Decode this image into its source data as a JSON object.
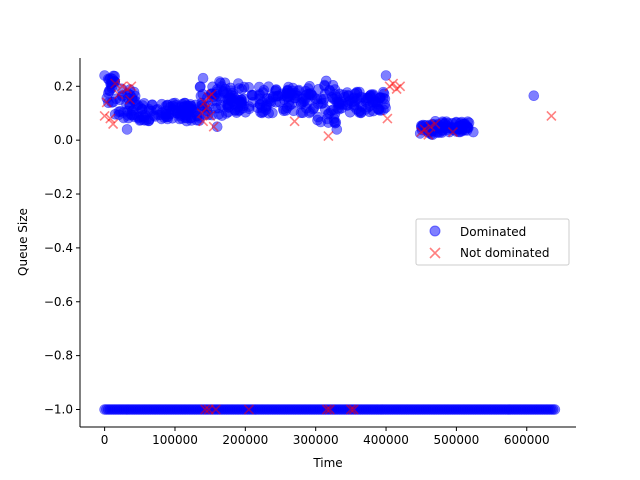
{
  "chart_data": {
    "type": "scatter",
    "xlabel": "Time",
    "ylabel": "Queue Size",
    "xlim": [
      -35000,
      670000
    ],
    "ylim": [
      -1.065,
      0.305
    ],
    "xticks": [
      0,
      100000,
      200000,
      300000,
      400000,
      500000,
      600000
    ],
    "xtick_labels": [
      "0",
      "100000",
      "200000",
      "300000",
      "400000",
      "500000",
      "600000"
    ],
    "yticks": [
      0.2,
      0.0,
      -0.2,
      -0.4,
      -0.6,
      -0.8,
      -1.0
    ],
    "ytick_labels": [
      "0.2",
      "0.0",
      "−0.2",
      "−0.4",
      "−0.6",
      "−0.8",
      "−1.0"
    ],
    "grid": false,
    "legend_position": "center-right",
    "series": [
      {
        "name": "Dominated",
        "marker": "circle",
        "color": "#0000ff",
        "alpha": 0.5,
        "bands": [
          {
            "x": [
              0,
              640000
            ],
            "y": [
              -1.0,
              -1.0
            ]
          },
          {
            "x": [
              0,
              15000
            ],
            "y": [
              0.13,
              0.24
            ]
          },
          {
            "x": [
              15000,
              45000
            ],
            "y": [
              0.08,
              0.2
            ]
          },
          {
            "x": [
              45000,
              135000
            ],
            "y": [
              0.07,
              0.14
            ]
          },
          {
            "x": [
              135000,
              175000
            ],
            "y": [
              0.09,
              0.22
            ]
          },
          {
            "x": [
              175000,
              300000
            ],
            "y": [
              0.1,
              0.2
            ]
          },
          {
            "x": [
              300000,
              330000
            ],
            "y": [
              0.06,
              0.21
            ]
          },
          {
            "x": [
              330000,
              400000
            ],
            "y": [
              0.1,
              0.18
            ]
          },
          {
            "x": [
              448000,
              480000
            ],
            "y": [
              0.02,
              0.06
            ]
          },
          {
            "x": [
              480000,
              520000
            ],
            "y": [
              0.03,
              0.07
            ]
          }
        ],
        "points": [
          {
            "x": 0,
            "y": 0.24
          },
          {
            "x": 8000,
            "y": 0.23
          },
          {
            "x": 10000,
            "y": 0.14
          },
          {
            "x": 32000,
            "y": 0.04
          },
          {
            "x": 47000,
            "y": 0.13
          },
          {
            "x": 140000,
            "y": 0.23
          },
          {
            "x": 160000,
            "y": 0.05
          },
          {
            "x": 190000,
            "y": 0.21
          },
          {
            "x": 315000,
            "y": 0.22
          },
          {
            "x": 330000,
            "y": 0.04
          },
          {
            "x": 400000,
            "y": 0.24
          },
          {
            "x": 470000,
            "y": 0.07
          },
          {
            "x": 490000,
            "y": 0.03
          },
          {
            "x": 510000,
            "y": 0.06
          },
          {
            "x": 524000,
            "y": 0.03
          },
          {
            "x": 610000,
            "y": 0.165
          }
        ]
      },
      {
        "name": "Not dominated",
        "marker": "x",
        "color": "#ff0000",
        "alpha": 0.5,
        "points": [
          {
            "x": 0,
            "y": 0.09
          },
          {
            "x": 3000,
            "y": 0.14
          },
          {
            "x": 8000,
            "y": 0.08
          },
          {
            "x": 12000,
            "y": 0.06
          },
          {
            "x": 15000,
            "y": 0.21
          },
          {
            "x": 20000,
            "y": 0.17
          },
          {
            "x": 25000,
            "y": 0.2
          },
          {
            "x": 32000,
            "y": 0.19
          },
          {
            "x": 38000,
            "y": 0.2
          },
          {
            "x": 36000,
            "y": 0.15
          },
          {
            "x": 138000,
            "y": 0.1
          },
          {
            "x": 140000,
            "y": 0.07
          },
          {
            "x": 142000,
            "y": 0.14
          },
          {
            "x": 145000,
            "y": 0.12
          },
          {
            "x": 148000,
            "y": 0.16
          },
          {
            "x": 150000,
            "y": 0.09
          },
          {
            "x": 152000,
            "y": 0.17
          },
          {
            "x": 155000,
            "y": 0.05
          },
          {
            "x": 270000,
            "y": 0.07
          },
          {
            "x": 318000,
            "y": 0.015
          },
          {
            "x": 402000,
            "y": 0.08
          },
          {
            "x": 405000,
            "y": 0.2
          },
          {
            "x": 410000,
            "y": 0.21
          },
          {
            "x": 415000,
            "y": 0.19
          },
          {
            "x": 420000,
            "y": 0.2
          },
          {
            "x": 450000,
            "y": 0.03
          },
          {
            "x": 455000,
            "y": 0.04
          },
          {
            "x": 460000,
            "y": 0.02
          },
          {
            "x": 463000,
            "y": 0.05
          },
          {
            "x": 470000,
            "y": 0.06
          },
          {
            "x": 495000,
            "y": 0.03
          },
          {
            "x": 635000,
            "y": 0.09
          },
          {
            "x": 143000,
            "y": -1.0
          },
          {
            "x": 148000,
            "y": -1.0
          },
          {
            "x": 158000,
            "y": -1.0
          },
          {
            "x": 205000,
            "y": -1.0
          },
          {
            "x": 316000,
            "y": -1.0
          },
          {
            "x": 320000,
            "y": -1.0
          },
          {
            "x": 350000,
            "y": -1.0
          },
          {
            "x": 354000,
            "y": -1.0
          }
        ]
      }
    ]
  }
}
